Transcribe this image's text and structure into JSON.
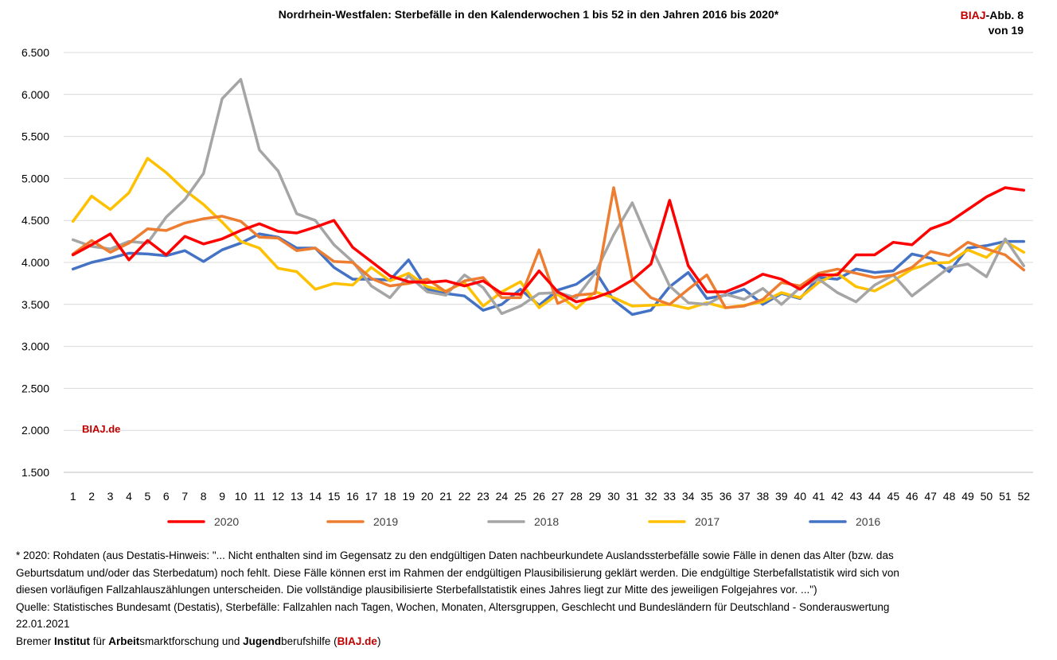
{
  "header": {
    "title": "Nordrhein-Westfalen: Sterbefälle in den Kalenderwochen 1 bis 52 in den Jahren 2016 bis 2020*",
    "badge_brand": "BIAJ",
    "badge_rest": "-Abb. 8",
    "badge_line2": "von 19"
  },
  "watermark": "BIAJ.de",
  "footer": {
    "note_lines": [
      "* 2020: Rohdaten (aus Destatis-Hinweis: \"... Nicht enthalten sind im Gegensatz zu den endgültigen Daten nachbeurkundete Auslandssterbefälle sowie Fälle in denen das Alter (bzw. das",
      "Geburtsdatum und/oder das Sterbedatum) noch fehlt. Diese Fälle können erst im Rahmen der endgültigen Plausibilisierung geklärt werden. Die endgültige Sterbefallstatistik wird sich von",
      "diesen vorläufigen Fallzahlauszählungen unterscheiden. Die vollständige plausibilisierte Sterbefallstatistik eines Jahres liegt zur Mitte des jeweiligen Folgejahres vor. ...\")",
      "Quelle: Statistisches Bundesamt (Destatis), Sterbefälle: Fallzahlen nach Tagen, Wochen, Monaten, Altersgruppen, Geschlecht und Bundesländern für Deutschland - Sonderauswertung",
      "22.01.2021"
    ],
    "credit": {
      "w1": "Bremer ",
      "w2": "Institut",
      "w3": " für ",
      "w4": "Arbeit",
      "w5": "smarktforschung und ",
      "w6": "Jugend",
      "w7": "berufshilfe (",
      "w8": "BIAJ.de",
      "w9": ")"
    }
  },
  "chart_data": {
    "type": "line",
    "title": "Nordrhein-Westfalen: Sterbefälle in den Kalenderwochen 1 bis 52 in den Jahren 2016 bis 2020*",
    "xlabel": "",
    "ylabel": "",
    "ylim": [
      1500,
      6500
    ],
    "y_ticks": [
      1500,
      2000,
      2500,
      3000,
      3500,
      4000,
      4500,
      5000,
      5500,
      6000,
      6500
    ],
    "y_tick_labels": [
      "1.500",
      "2.000",
      "2.500",
      "3.000",
      "3.500",
      "4.000",
      "4.500",
      "5.000",
      "5.500",
      "6.000",
      "6.500"
    ],
    "grid": true,
    "legend": "bottom",
    "categories": [
      "1",
      "2",
      "3",
      "4",
      "5",
      "6",
      "7",
      "8",
      "9",
      "10",
      "11",
      "12",
      "13",
      "14",
      "15",
      "16",
      "17",
      "18",
      "19",
      "20",
      "21",
      "22",
      "23",
      "24",
      "25",
      "26",
      "27",
      "28",
      "29",
      "30",
      "31",
      "32",
      "33",
      "34",
      "35",
      "36",
      "37",
      "38",
      "39",
      "40",
      "41",
      "42",
      "43",
      "44",
      "45",
      "46",
      "47",
      "48",
      "49",
      "50",
      "51",
      "52"
    ],
    "series": [
      {
        "name": "2016",
        "color": "#4472c4",
        "values": [
          3920,
          4000,
          4050,
          4110,
          4100,
          4080,
          4140,
          4010,
          4150,
          4230,
          4340,
          4300,
          4170,
          4170,
          3940,
          3800,
          3800,
          3790,
          4030,
          3680,
          3630,
          3600,
          3430,
          3500,
          3680,
          3490,
          3670,
          3740,
          3900,
          3550,
          3380,
          3430,
          3710,
          3880,
          3570,
          3610,
          3680,
          3500,
          3630,
          3570,
          3820,
          3800,
          3920,
          3880,
          3900,
          4100,
          4050,
          3890,
          4170,
          4200,
          4250,
          4250
        ]
      },
      {
        "name": "2017",
        "color": "#ffc000",
        "values": [
          4490,
          4790,
          4630,
          4830,
          5240,
          5070,
          4860,
          4690,
          4480,
          4250,
          4170,
          3930,
          3890,
          3680,
          3750,
          3730,
          3940,
          3780,
          3870,
          3710,
          3660,
          3760,
          3480,
          3650,
          3770,
          3460,
          3620,
          3450,
          3650,
          3580,
          3480,
          3490,
          3500,
          3450,
          3520,
          3460,
          3490,
          3530,
          3640,
          3580,
          3760,
          3870,
          3710,
          3660,
          3780,
          3920,
          3990,
          4000,
          4150,
          4060,
          4250,
          4120
        ]
      },
      {
        "name": "2018",
        "color": "#a5a5a5",
        "values": [
          4270,
          4190,
          4160,
          4250,
          4230,
          4540,
          4750,
          5060,
          5950,
          6180,
          5340,
          5090,
          4580,
          4500,
          4210,
          4010,
          3720,
          3580,
          3840,
          3650,
          3610,
          3850,
          3700,
          3390,
          3480,
          3630,
          3640,
          3580,
          3870,
          4330,
          4710,
          4190,
          3720,
          3520,
          3500,
          3620,
          3560,
          3690,
          3500,
          3700,
          3800,
          3640,
          3530,
          3730,
          3850,
          3600,
          3770,
          3940,
          3980,
          3830,
          4280,
          3960
        ]
      },
      {
        "name": "2019",
        "color": "#ed7d31",
        "values": [
          4100,
          4260,
          4120,
          4230,
          4400,
          4380,
          4470,
          4520,
          4550,
          4490,
          4300,
          4290,
          4140,
          4170,
          4010,
          4000,
          3810,
          3720,
          3750,
          3800,
          3650,
          3780,
          3820,
          3580,
          3580,
          4150,
          3510,
          3610,
          3630,
          4890,
          3800,
          3580,
          3500,
          3680,
          3850,
          3460,
          3480,
          3560,
          3760,
          3720,
          3870,
          3920,
          3870,
          3820,
          3850,
          3940,
          4130,
          4080,
          4240,
          4160,
          4090,
          3910
        ]
      },
      {
        "name": "2020",
        "color": "#ff0000",
        "values": [
          4090,
          4210,
          4340,
          4030,
          4260,
          4090,
          4310,
          4220,
          4280,
          4380,
          4460,
          4370,
          4350,
          4420,
          4500,
          4180,
          4010,
          3840,
          3770,
          3760,
          3780,
          3720,
          3780,
          3630,
          3620,
          3900,
          3650,
          3530,
          3580,
          3660,
          3790,
          3980,
          4740,
          3960,
          3650,
          3650,
          3740,
          3860,
          3800,
          3680,
          3850,
          3850,
          4090,
          4090,
          4240,
          4210,
          4400,
          4480,
          4630,
          4780,
          4890,
          4860
        ]
      }
    ],
    "legend_order": [
      "2020",
      "2019",
      "2018",
      "2017",
      "2016"
    ],
    "draw_order": [
      "2016",
      "2017",
      "2018",
      "2019",
      "2020"
    ]
  }
}
